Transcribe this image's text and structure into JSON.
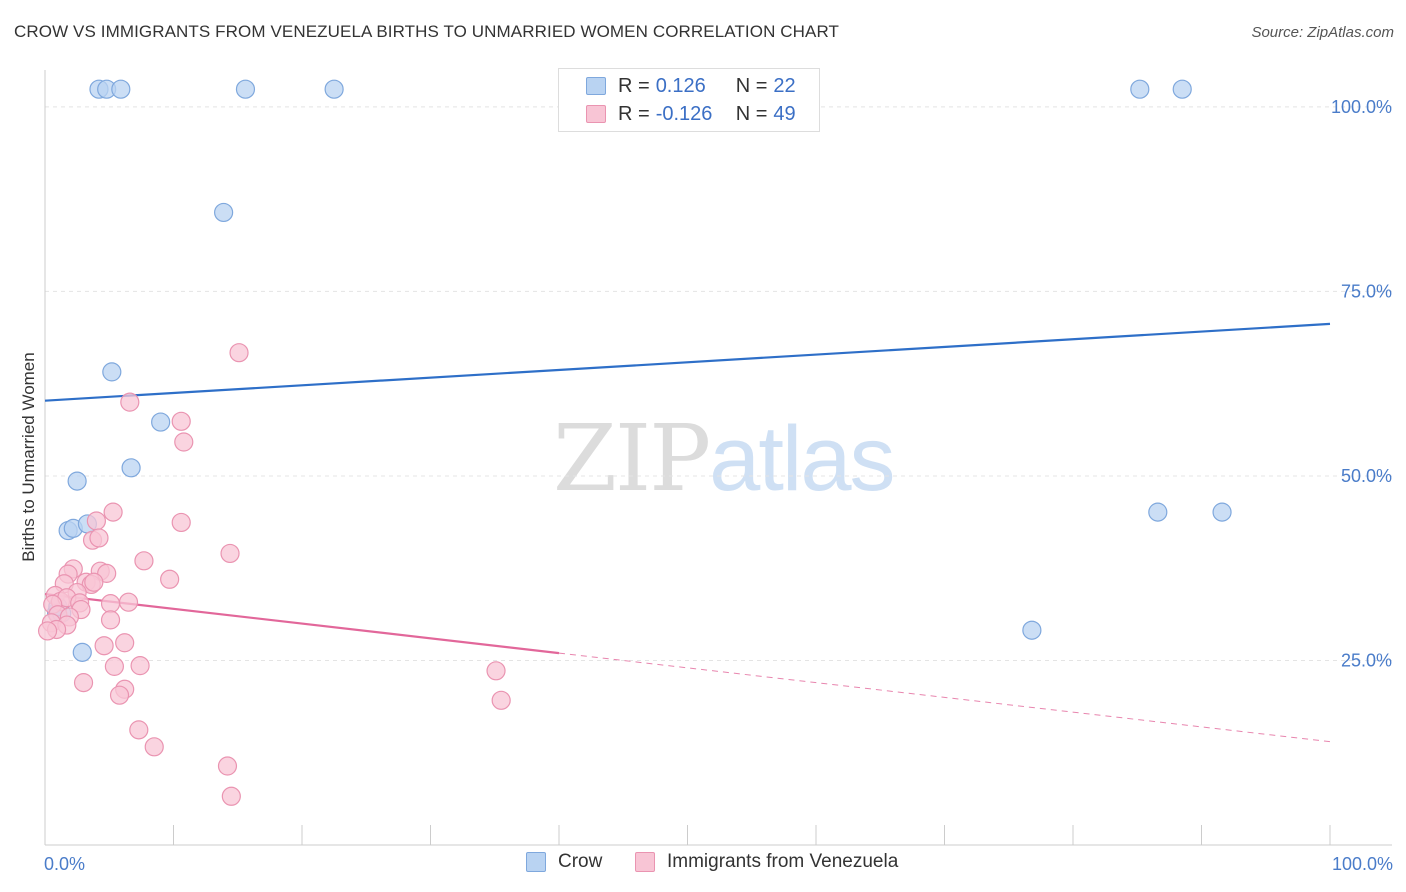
{
  "header": {
    "title": "CROW VS IMMIGRANTS FROM VENEZUELA BIRTHS TO UNMARRIED WOMEN CORRELATION CHART",
    "source": "Source: ZipAtlas.com"
  },
  "watermark": {
    "zip": "ZIP",
    "atlas": "atlas"
  },
  "legend": {
    "rows": [
      {
        "r_key": "R = ",
        "r_value": " 0.126",
        "n_key": "N = ",
        "n_value": "22"
      },
      {
        "r_key": "R = ",
        "r_value": "-0.126",
        "n_key": "N = ",
        "n_value": "49"
      }
    ]
  },
  "colors": {
    "crow_fill": "#b9d3f2",
    "crow_stroke": "#7fa8dd",
    "crow_line": "#2e6fc8",
    "ven_fill": "#f8c5d5",
    "ven_stroke": "#ea94b1",
    "ven_line": "#e2679a",
    "grid": "#e4e4e4",
    "axis": "#cccccc",
    "tick_text": "#4a7cc9"
  },
  "chart_data": {
    "type": "scatter",
    "title": "CROW VS IMMIGRANTS FROM VENEZUELA BIRTHS TO UNMARRIED WOMEN CORRELATION CHART",
    "xlabel": "",
    "ylabel": "Births to Unmarried Women",
    "xlim": [
      0,
      100
    ],
    "ylim": [
      0,
      105
    ],
    "x_tick_labels": [
      "0.0%",
      "100.0%"
    ],
    "y_ticks": [
      25,
      50,
      75,
      100
    ],
    "y_tick_labels": [
      "25.0%",
      "50.0%",
      "75.0%",
      "100.0%"
    ],
    "grid": true,
    "legend_position": "top-center",
    "series": [
      {
        "name": "Crow",
        "r": 0.126,
        "n": 22,
        "points": [
          [
            4.2,
            102.4
          ],
          [
            4.8,
            102.4
          ],
          [
            5.9,
            102.4
          ],
          [
            15.6,
            102.4
          ],
          [
            22.5,
            102.4
          ],
          [
            85.2,
            102.4
          ],
          [
            88.5,
            102.4
          ],
          [
            13.9,
            85.7
          ],
          [
            5.2,
            64.1
          ],
          [
            9.0,
            57.3
          ],
          [
            6.7,
            51.1
          ],
          [
            2.5,
            49.3
          ],
          [
            1.8,
            42.6
          ],
          [
            2.2,
            42.9
          ],
          [
            3.3,
            43.5
          ],
          [
            86.6,
            45.1
          ],
          [
            91.6,
            45.1
          ],
          [
            0.9,
            31.5
          ],
          [
            1.3,
            31.4
          ],
          [
            1.0,
            32.3
          ],
          [
            2.9,
            26.1
          ],
          [
            76.8,
            29.1
          ]
        ],
        "trend": {
          "x0": 0,
          "y0": 60.2,
          "x1": 100,
          "y1": 70.6
        }
      },
      {
        "name": "Immigrants from Venezuela",
        "r": -0.126,
        "n": 49,
        "points": [
          [
            15.1,
            66.7
          ],
          [
            6.6,
            60.0
          ],
          [
            10.6,
            57.4
          ],
          [
            10.8,
            54.6
          ],
          [
            10.6,
            43.7
          ],
          [
            5.3,
            45.1
          ],
          [
            4.0,
            43.9
          ],
          [
            3.7,
            41.3
          ],
          [
            4.2,
            41.6
          ],
          [
            14.4,
            39.5
          ],
          [
            7.7,
            38.5
          ],
          [
            2.2,
            37.4
          ],
          [
            1.8,
            36.7
          ],
          [
            4.3,
            37.1
          ],
          [
            4.8,
            36.8
          ],
          [
            9.7,
            36.0
          ],
          [
            1.5,
            35.4
          ],
          [
            3.2,
            35.6
          ],
          [
            3.6,
            35.3
          ],
          [
            3.8,
            35.6
          ],
          [
            2.5,
            34.2
          ],
          [
            0.8,
            33.8
          ],
          [
            1.2,
            33.0
          ],
          [
            1.7,
            33.5
          ],
          [
            2.7,
            32.8
          ],
          [
            6.5,
            32.9
          ],
          [
            5.1,
            32.7
          ],
          [
            0.6,
            32.6
          ],
          [
            2.8,
            31.9
          ],
          [
            1.0,
            31.2
          ],
          [
            1.9,
            30.9
          ],
          [
            0.5,
            30.1
          ],
          [
            1.7,
            29.8
          ],
          [
            0.9,
            29.2
          ],
          [
            5.1,
            30.5
          ],
          [
            6.2,
            27.4
          ],
          [
            4.6,
            27.0
          ],
          [
            5.4,
            24.2
          ],
          [
            7.4,
            24.3
          ],
          [
            3.0,
            22.0
          ],
          [
            6.2,
            21.1
          ],
          [
            5.8,
            20.3
          ],
          [
            35.1,
            23.6
          ],
          [
            35.5,
            19.6
          ],
          [
            7.3,
            15.6
          ],
          [
            8.5,
            13.3
          ],
          [
            14.2,
            10.7
          ],
          [
            14.5,
            6.6
          ],
          [
            0.2,
            29.0
          ]
        ],
        "trend": {
          "x0": 0,
          "y0": 34.0,
          "x1": 40,
          "y1": 26.0
        },
        "trend_extension": {
          "x0": 40,
          "y0": 26.0,
          "x1": 100,
          "y1": 14.0
        }
      }
    ]
  }
}
